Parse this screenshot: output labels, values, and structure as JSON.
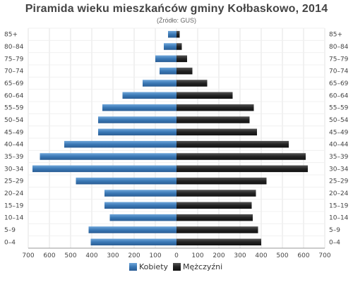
{
  "chart_data": {
    "type": "bar",
    "orientation": "horizontal-population-pyramid",
    "title": "Piramida wieku mieszkańców gminy Kołbaskowo, 2014",
    "subtitle": "(Źródło: GUS)",
    "categories": [
      "0–4",
      "5–9",
      "10–14",
      "15–19",
      "20–24",
      "25–29",
      "30–34",
      "35–39",
      "40–44",
      "45–49",
      "50–54",
      "55–59",
      "60–64",
      "65–69",
      "70–74",
      "75–79",
      "80–84",
      "85+"
    ],
    "series": [
      {
        "name": "Kobiety",
        "side": "left",
        "color": "#3a78b5",
        "values": [
          405,
          415,
          315,
          340,
          340,
          475,
          680,
          645,
          530,
          370,
          370,
          350,
          255,
          160,
          80,
          100,
          60,
          40
        ]
      },
      {
        "name": "Mężczyźni",
        "side": "right",
        "color": "#222222",
        "values": [
          400,
          385,
          360,
          355,
          375,
          425,
          620,
          610,
          530,
          380,
          345,
          365,
          265,
          145,
          75,
          50,
          25,
          15
        ]
      }
    ],
    "xlim": [
      -700,
      700
    ],
    "x_ticks": [
      700,
      600,
      500,
      400,
      300,
      200,
      100,
      0,
      100,
      200,
      300,
      400,
      500,
      600,
      700
    ],
    "grid": true,
    "legend_position": "bottom"
  },
  "legend": {
    "female": "Kobiety",
    "male": "Mężczyźni"
  }
}
